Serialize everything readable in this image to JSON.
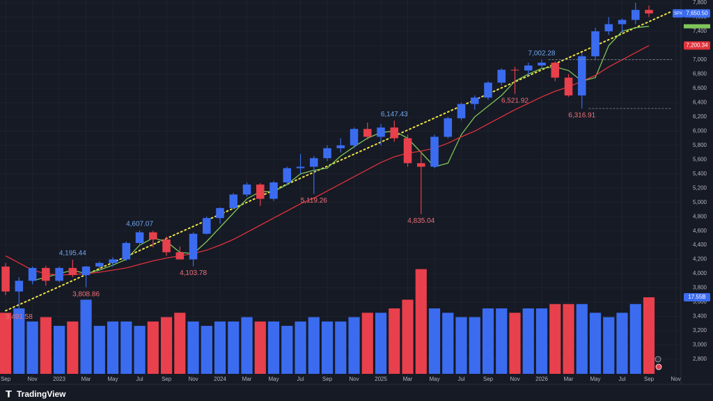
{
  "brand": "TradingView",
  "chart_data": {
    "type": "candlestick",
    "symbol": "SPX",
    "up_color": "#3b6cf0",
    "down_color": "#e8404c",
    "grid": true,
    "open": [
      4100,
      3750,
      3900,
      4080,
      3900,
      4080,
      3980,
      4100,
      4150,
      4200,
      4430,
      4580,
      4480,
      4300,
      4200,
      4560,
      4780,
      4920,
      5110,
      5250,
      5050,
      5280,
      5480,
      5500,
      5620,
      5760,
      5800,
      6030,
      5920,
      6050,
      5900,
      5550,
      5500,
      5920,
      6180,
      6380,
      6470,
      6680,
      6860,
      6850,
      6920,
      6960,
      6750,
      6500,
      7050,
      7400,
      7500,
      7560,
      7700
    ],
    "high": [
      4150,
      3950,
      4100,
      4110,
      4100,
      4195.44,
      4110,
      4170,
      4230,
      4450,
      4607.07,
      4600,
      4520,
      4380,
      4580,
      4800,
      4930,
      5130,
      5280,
      5270,
      5300,
      5500,
      5680,
      5650,
      5800,
      5900,
      6050,
      6120,
      6100,
      6147.43,
      5950,
      5700,
      5950,
      6200,
      6400,
      6500,
      6700,
      6880,
      6900,
      6960,
      7002.28,
      6980,
      6800,
      7100,
      7450,
      7600,
      7580,
      7800,
      7760
    ],
    "low": [
      3700,
      3491.58,
      3850,
      3830,
      3880,
      3950,
      3808.86,
      4050,
      4100,
      4180,
      4400,
      4370,
      4250,
      4200,
      4103.78,
      4550,
      4700,
      4900,
      5080,
      4950,
      5020,
      5250,
      5400,
      5119.26,
      5580,
      5700,
      5760,
      5880,
      5800,
      5850,
      5500,
      4835.04,
      5480,
      5900,
      6150,
      6300,
      6440,
      6640,
      6521.92,
      6780,
      6880,
      6700,
      6480,
      6316.91,
      7000,
      7350,
      7380,
      7500,
      7600
    ],
    "close": [
      3750,
      3900,
      4080,
      3900,
      4080,
      3980,
      4100,
      4150,
      4200,
      4430,
      4580,
      4480,
      4300,
      4200,
      4560,
      4780,
      4920,
      5110,
      5250,
      5050,
      5280,
      5480,
      5500,
      5620,
      5760,
      5800,
      6030,
      5920,
      6050,
      5900,
      5550,
      5500,
      5920,
      6180,
      6380,
      6470,
      6680,
      6860,
      6850,
      6920,
      6960,
      6750,
      6500,
      7050,
      7400,
      7500,
      7560,
      7700,
      7650.5
    ],
    "close_tag": "7,650.50",
    "high_labels": [
      null,
      null,
      null,
      null,
      null,
      "4,195.44",
      null,
      null,
      null,
      null,
      "4,607.07",
      null,
      null,
      null,
      null,
      null,
      null,
      null,
      null,
      null,
      null,
      null,
      null,
      null,
      null,
      null,
      null,
      null,
      null,
      "6,147.43",
      null,
      null,
      null,
      null,
      null,
      null,
      null,
      null,
      null,
      null,
      "7,002.28",
      null,
      null,
      null,
      null,
      null,
      null,
      null,
      null
    ],
    "low_labels": [
      null,
      "3,491.58",
      null,
      null,
      null,
      null,
      "3,808.86",
      null,
      null,
      null,
      null,
      null,
      null,
      null,
      "4,103.78",
      null,
      null,
      null,
      null,
      null,
      null,
      null,
      null,
      "5,119.26",
      null,
      null,
      null,
      null,
      null,
      null,
      null,
      "4,835.04",
      null,
      null,
      null,
      null,
      null,
      null,
      "6,521.92",
      null,
      null,
      null,
      null,
      "6,316.91",
      null,
      null,
      null,
      null,
      null
    ],
    "volume": [
      14,
      15,
      12,
      13,
      11,
      12,
      17,
      11,
      12,
      12,
      11,
      12,
      13,
      14,
      12,
      11,
      12,
      12,
      13,
      12,
      12,
      11,
      12,
      13,
      12,
      12,
      13,
      14,
      14,
      15,
      17,
      24,
      15,
      14,
      13,
      13,
      15,
      15,
      14,
      15,
      15,
      16,
      16,
      16,
      14,
      13,
      14,
      16,
      17.55
    ],
    "volume_tag": "17.55B",
    "vlim": [
      0,
      30
    ],
    "moving_averages": [
      {
        "color": "#7fc65a",
        "values": [
          null,
          null,
          3900,
          3950,
          4000,
          4050,
          4000,
          4050,
          4120,
          4200,
          4400,
          4500,
          4450,
          4300,
          4280,
          4450,
          4650,
          4850,
          5050,
          5150,
          5150,
          5250,
          5400,
          5450,
          5480,
          5650,
          5780,
          5900,
          5980,
          6000,
          5900,
          5700,
          5500,
          5550,
          5950,
          6200,
          6350,
          6500,
          6700,
          6800,
          6880,
          6900,
          6850,
          6700,
          6750,
          7200,
          7400,
          7450,
          7470
        ]
      },
      {
        "color": "#e0323c",
        "values": [
          4250,
          4150,
          4050,
          4000,
          3980,
          3990,
          4000,
          4020,
          4050,
          4080,
          4130,
          4180,
          4220,
          4250,
          4280,
          4330,
          4400,
          4480,
          4580,
          4680,
          4780,
          4880,
          4980,
          5060,
          5160,
          5260,
          5360,
          5460,
          5560,
          5640,
          5690,
          5720,
          5760,
          5830,
          5920,
          6000,
          6100,
          6200,
          6300,
          6390,
          6480,
          6560,
          6620,
          6700,
          6780,
          6900,
          7000,
          7100,
          7200.34
        ],
        "tag": "7,200.34"
      }
    ],
    "trendline": {
      "color": "#f0e442",
      "x": [
        0,
        49
      ],
      "y": [
        3480,
        7620
      ]
    },
    "xlim": [
      -0.42,
      50.39
    ],
    "ylim": [
      2487,
      7839
    ],
    "xticks": [
      {
        "value": 0,
        "label": "Sep"
      },
      {
        "value": 2,
        "label": "Nov"
      },
      {
        "value": 4,
        "label": "2023"
      },
      {
        "value": 6,
        "label": "Mar"
      },
      {
        "value": 8,
        "label": "May"
      },
      {
        "value": 10,
        "label": "Jul"
      },
      {
        "value": 12,
        "label": "Sep"
      },
      {
        "value": 14,
        "label": "Nov"
      },
      {
        "value": 16,
        "label": "2024"
      },
      {
        "value": 18,
        "label": "Mar"
      },
      {
        "value": 20,
        "label": "May"
      },
      {
        "value": 22,
        "label": "Jul"
      },
      {
        "value": 24,
        "label": "Sep"
      },
      {
        "value": 26,
        "label": "Nov"
      },
      {
        "value": 28,
        "label": "2025"
      },
      {
        "value": 30,
        "label": "Mar"
      },
      {
        "value": 32,
        "label": "May"
      },
      {
        "value": 34,
        "label": "Jul"
      },
      {
        "value": 36,
        "label": "Sep"
      },
      {
        "value": 38,
        "label": "Nov"
      },
      {
        "value": 40,
        "label": "2026"
      },
      {
        "value": 42,
        "label": "Mar"
      },
      {
        "value": 44,
        "label": "May"
      },
      {
        "value": 46,
        "label": "Jul"
      },
      {
        "value": 48,
        "label": "Sep"
      },
      {
        "value": 50,
        "label": "Nov"
      }
    ],
    "yticks": [
      {
        "value": 2800,
        "label": "2,800"
      },
      {
        "value": 3000,
        "label": "3,000"
      },
      {
        "value": 3200,
        "label": "3,200"
      },
      {
        "value": 3400,
        "label": "3,400"
      },
      {
        "value": 3600,
        "label": "3,600"
      },
      {
        "value": 3800,
        "label": "3,800"
      },
      {
        "value": 4000,
        "label": "4,000"
      },
      {
        "value": 4200,
        "label": "4,200"
      },
      {
        "value": 4400,
        "label": "4,400"
      },
      {
        "value": 4600,
        "label": "4,600"
      },
      {
        "value": 4800,
        "label": "4,800"
      },
      {
        "value": 5000,
        "label": "5,000"
      },
      {
        "value": 5200,
        "label": "5,200"
      },
      {
        "value": 5400,
        "label": "5,400"
      },
      {
        "value": 5600,
        "label": "5,600"
      },
      {
        "value": 5800,
        "label": "5,800"
      },
      {
        "value": 6000,
        "label": "6,000"
      },
      {
        "value": 6200,
        "label": "6,200"
      },
      {
        "value": 6400,
        "label": "6,400"
      },
      {
        "value": 6600,
        "label": "6,600"
      },
      {
        "value": 6800,
        "label": "6,800"
      },
      {
        "value": 7000,
        "label": "7,000"
      },
      {
        "value": 7200,
        "label": "7,200"
      },
      {
        "value": 7400,
        "label": "7,400"
      },
      {
        "value": 7600,
        "label": "7,600"
      },
      {
        "value": 7800,
        "label": "7,800"
      }
    ]
  }
}
